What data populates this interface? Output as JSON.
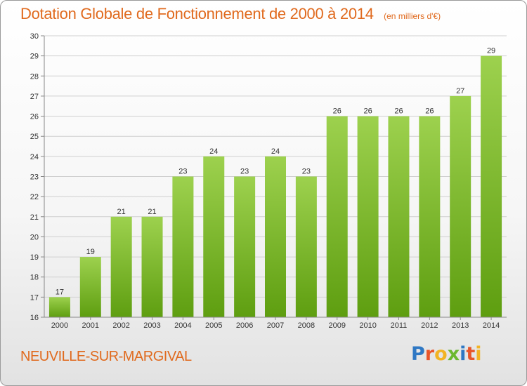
{
  "title": "Dotation Globale de Fonctionnement de 2000 à 2014",
  "subtitle": "(en milliers d'€)",
  "commune": "NEUVILLE-SUR-MARGIVAL",
  "logo": {
    "text": "Proxiti",
    "letters": [
      {
        "ch": "P",
        "color": "#2f78c4"
      },
      {
        "ch": "r",
        "color": "#e8552a"
      },
      {
        "ch": "o",
        "color": "#f2b323"
      },
      {
        "ch": "x",
        "color": "#6bb82e"
      },
      {
        "ch": "i",
        "color": "#2f78c4"
      },
      {
        "ch": "t",
        "color": "#e8552a"
      },
      {
        "ch": "i",
        "color": "#f2b323"
      }
    ]
  },
  "colors": {
    "accent": "#e06a1e",
    "bar_top": "#9dd14e",
    "bar_bottom": "#5e9e10",
    "grid": "#d0d0d0",
    "axis_text": "#333333"
  },
  "chart_data": {
    "type": "bar",
    "categories": [
      "2000",
      "2001",
      "2002",
      "2003",
      "2004",
      "2005",
      "2006",
      "2007",
      "2008",
      "2009",
      "2010",
      "2011",
      "2012",
      "2013",
      "2014"
    ],
    "values": [
      17,
      19,
      21,
      21,
      23,
      24,
      23,
      24,
      23,
      26,
      26,
      26,
      26,
      27,
      29
    ],
    "ylim": [
      16,
      30
    ],
    "yticks": [
      16,
      17,
      18,
      19,
      20,
      21,
      22,
      23,
      24,
      25,
      26,
      27,
      28,
      29,
      30
    ],
    "grid": true,
    "data_labels": true
  }
}
